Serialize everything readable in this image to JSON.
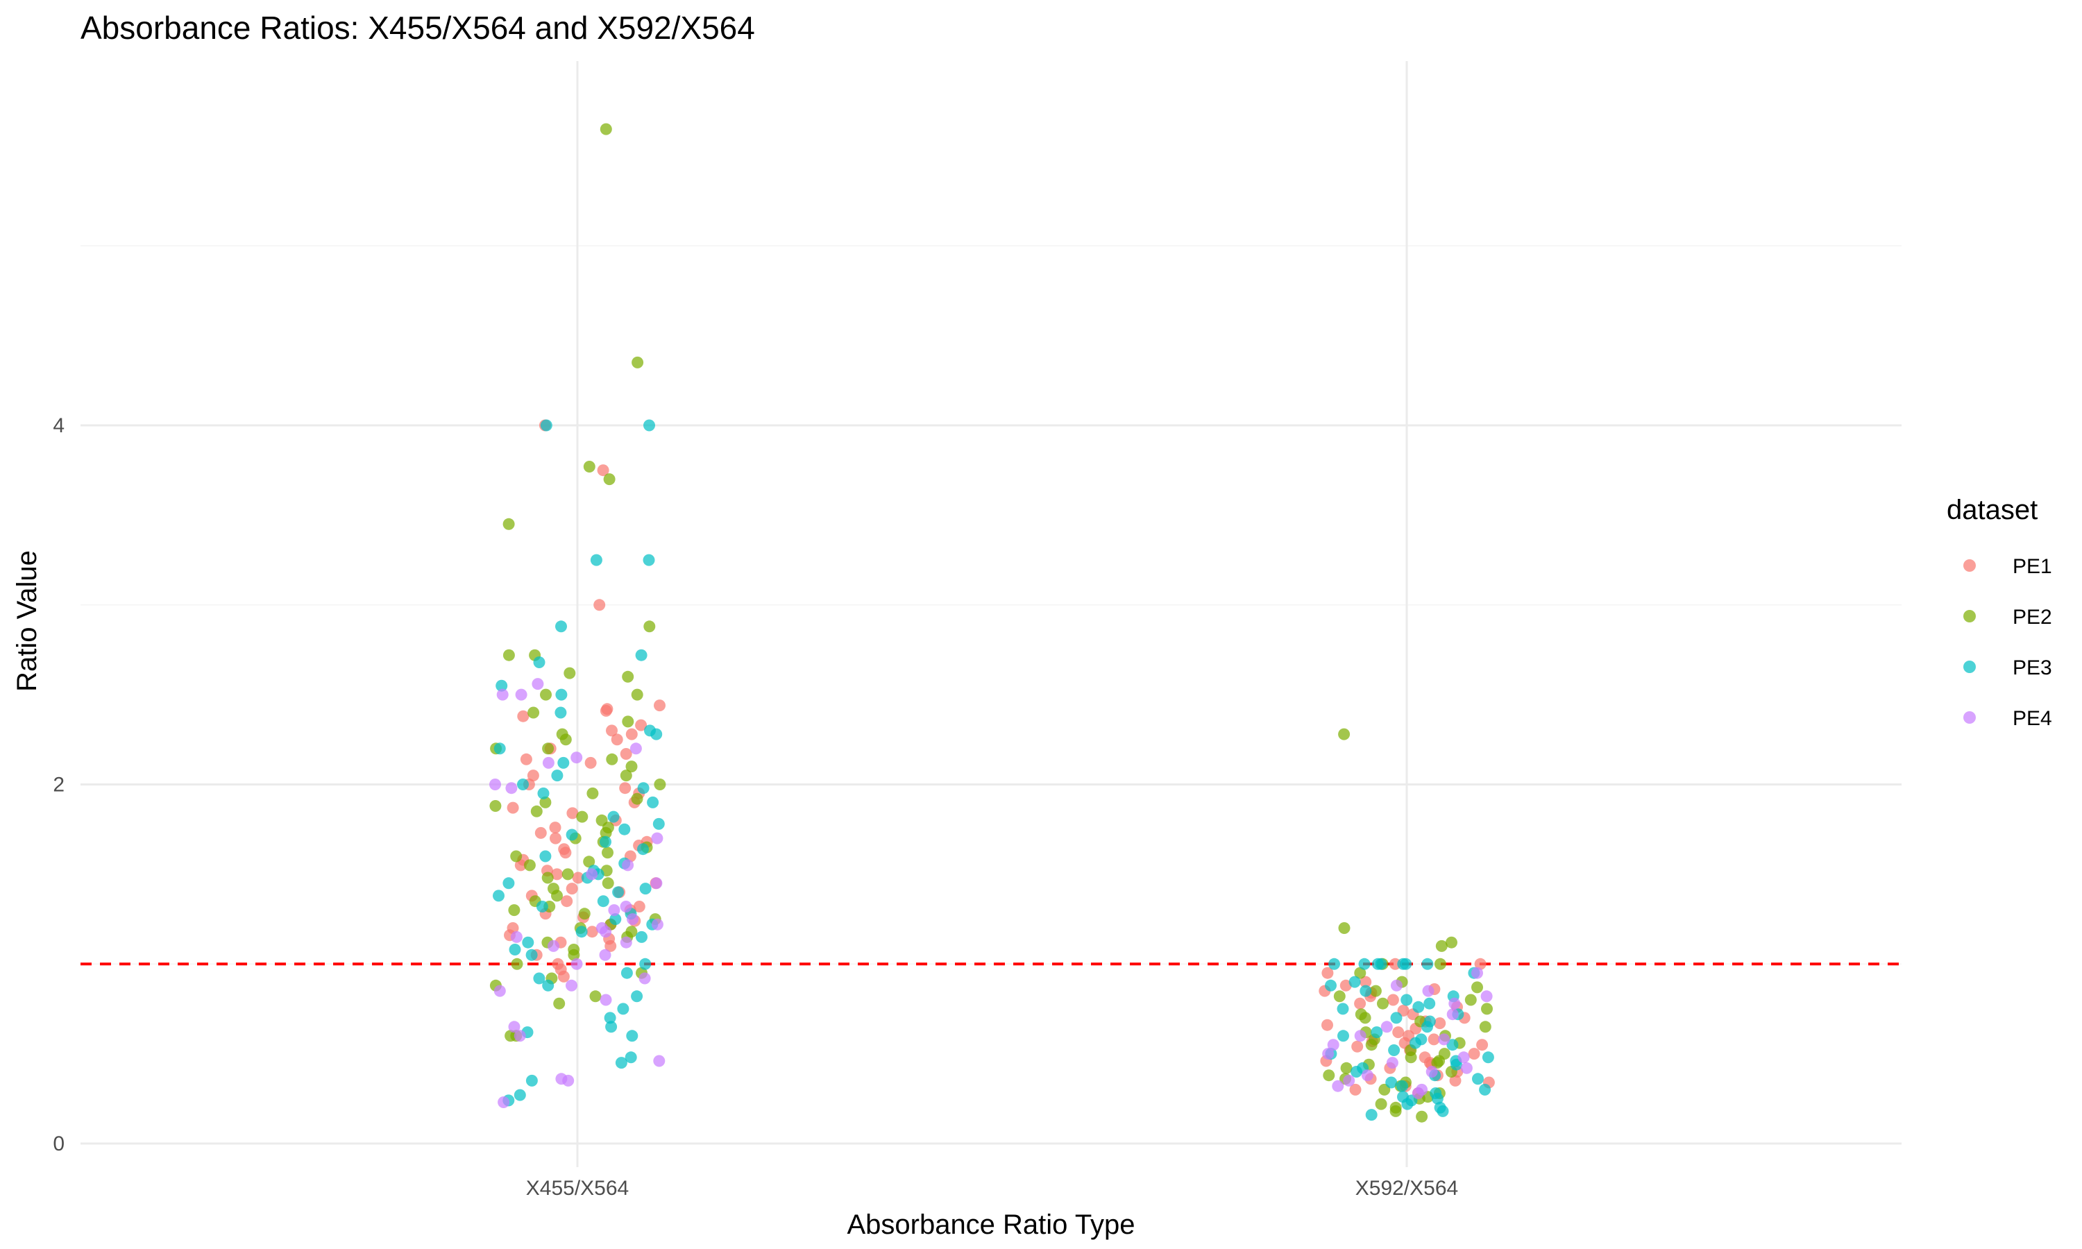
{
  "chart_data": {
    "type": "scatter",
    "title": "Absorbance Ratios: X455/X564 and X592/X564",
    "xlabel": "Absorbance Ratio Type",
    "ylabel": "Ratio Value",
    "categories": [
      "X455/X564",
      "X592/X564"
    ],
    "yticks": [
      0,
      2,
      4
    ],
    "ylim": [
      -0.1,
      5.85
    ],
    "grid": true,
    "jitter_width": 0.1,
    "reference_line": {
      "y": 1,
      "color": "#ff0000",
      "style": "dashed"
    },
    "legend": {
      "title": "dataset",
      "position": "right"
    },
    "series": [
      {
        "name": "PE1",
        "color": "#F8766D",
        "points": [
          {
            "category": "X455/X564",
            "values": [
              3.75,
              4.0,
              3.0,
              2.44,
              2.42,
              2.41,
              2.38,
              2.33,
              2.3,
              2.28,
              2.25,
              2.2,
              2.17,
              2.14,
              2.12,
              2.05,
              2.0,
              1.98,
              1.95,
              1.9,
              1.87,
              1.84,
              1.8,
              1.76,
              1.73,
              1.7,
              1.68,
              1.66,
              1.64,
              1.62,
              1.6,
              1.58,
              1.55,
              1.52,
              1.5,
              1.48,
              1.45,
              1.42,
              1.4,
              1.38,
              1.35,
              1.32,
              1.3,
              1.28,
              1.26,
              1.24,
              1.22,
              1.2,
              1.18,
              1.16,
              1.14,
              1.12,
              1.1,
              1.05,
              1.0,
              0.97,
              0.93
            ]
          },
          {
            "category": "X592/X564",
            "values": [
              1.0,
              1.0,
              0.95,
              0.9,
              0.88,
              0.86,
              0.85,
              0.84,
              0.82,
              0.8,
              0.78,
              0.76,
              0.74,
              0.72,
              0.7,
              0.68,
              0.67,
              0.66,
              0.64,
              0.62,
              0.6,
              0.58,
              0.57,
              0.56,
              0.55,
              0.54,
              0.52,
              0.5,
              0.48,
              0.46,
              0.45,
              0.44,
              0.42,
              0.4,
              0.38,
              0.36,
              0.35,
              0.34,
              0.32,
              0.3,
              0.28
            ]
          }
        ]
      },
      {
        "name": "PE2",
        "color": "#7CAE00",
        "points": [
          {
            "category": "X455/X564",
            "values": [
              5.65,
              4.35,
              3.77,
              3.7,
              3.45,
              2.88,
              2.72,
              2.72,
              2.62,
              2.6,
              2.5,
              2.5,
              2.4,
              2.35,
              2.28,
              2.25,
              2.2,
              2.2,
              2.14,
              2.1,
              2.05,
              2.0,
              1.95,
              1.92,
              1.9,
              1.88,
              1.85,
              1.82,
              1.8,
              1.76,
              1.73,
              1.7,
              1.68,
              1.65,
              1.62,
              1.6,
              1.57,
              1.55,
              1.52,
              1.5,
              1.48,
              1.45,
              1.42,
              1.38,
              1.35,
              1.32,
              1.3,
              1.28,
              1.25,
              1.22,
              1.2,
              1.18,
              1.15,
              1.12,
              1.08,
              1.05,
              1.0,
              0.95,
              0.92,
              0.88,
              0.82,
              0.78,
              0.6,
              0.6
            ]
          },
          {
            "category": "X592/X564",
            "values": [
              2.28,
              1.2,
              1.12,
              1.1,
              1.0,
              1.0,
              0.95,
              0.9,
              0.87,
              0.85,
              0.82,
              0.8,
              0.78,
              0.75,
              0.72,
              0.7,
              0.68,
              0.65,
              0.62,
              0.6,
              0.58,
              0.56,
              0.55,
              0.52,
              0.5,
              0.48,
              0.46,
              0.45,
              0.44,
              0.42,
              0.4,
              0.38,
              0.36,
              0.34,
              0.32,
              0.3,
              0.28,
              0.26,
              0.25,
              0.22,
              0.2,
              0.18,
              0.15
            ]
          }
        ]
      },
      {
        "name": "PE3",
        "color": "#00BFC4",
        "points": [
          {
            "category": "X455/X564",
            "values": [
              4.0,
              4.0,
              3.25,
              3.25,
              2.88,
              2.72,
              2.68,
              2.55,
              2.5,
              2.4,
              2.3,
              2.28,
              2.2,
              2.12,
              2.05,
              2.0,
              1.98,
              1.95,
              1.9,
              1.82,
              1.78,
              1.75,
              1.72,
              1.68,
              1.64,
              1.6,
              1.56,
              1.52,
              1.5,
              1.48,
              1.45,
              1.42,
              1.4,
              1.38,
              1.35,
              1.32,
              1.28,
              1.25,
              1.22,
              1.18,
              1.15,
              1.12,
              1.08,
              1.05,
              1.0,
              0.95,
              0.92,
              0.88,
              0.82,
              0.75,
              0.7,
              0.65,
              0.62,
              0.6,
              0.48,
              0.45,
              0.35,
              0.27,
              0.24
            ]
          },
          {
            "category": "X592/X564",
            "values": [
              1.0,
              1.0,
              1.0,
              1.0,
              1.0,
              1.0,
              1.0,
              0.95,
              0.9,
              0.88,
              0.85,
              0.82,
              0.8,
              0.78,
              0.76,
              0.75,
              0.72,
              0.7,
              0.68,
              0.65,
              0.62,
              0.6,
              0.58,
              0.56,
              0.55,
              0.52,
              0.5,
              0.48,
              0.46,
              0.44,
              0.42,
              0.4,
              0.38,
              0.36,
              0.34,
              0.32,
              0.3,
              0.28,
              0.26,
              0.25,
              0.24,
              0.22,
              0.2,
              0.18,
              0.16
            ]
          }
        ]
      },
      {
        "name": "PE4",
        "color": "#C77CFF",
        "points": [
          {
            "category": "X455/X564",
            "values": [
              2.56,
              2.5,
              2.5,
              2.2,
              2.15,
              2.12,
              2.0,
              1.98,
              1.7,
              1.55,
              1.5,
              1.45,
              1.32,
              1.3,
              1.25,
              1.22,
              1.2,
              1.18,
              1.15,
              1.12,
              1.1,
              1.05,
              1.0,
              0.92,
              0.88,
              0.85,
              0.8,
              0.65,
              0.6,
              0.46,
              0.36,
              0.35,
              0.23
            ]
          },
          {
            "category": "X592/X564",
            "values": [
              0.95,
              0.88,
              0.85,
              0.82,
              0.78,
              0.72,
              0.65,
              0.6,
              0.58,
              0.55,
              0.5,
              0.48,
              0.45,
              0.42,
              0.4,
              0.38,
              0.35,
              0.32,
              0.3,
              0.28
            ]
          }
        ]
      }
    ]
  }
}
